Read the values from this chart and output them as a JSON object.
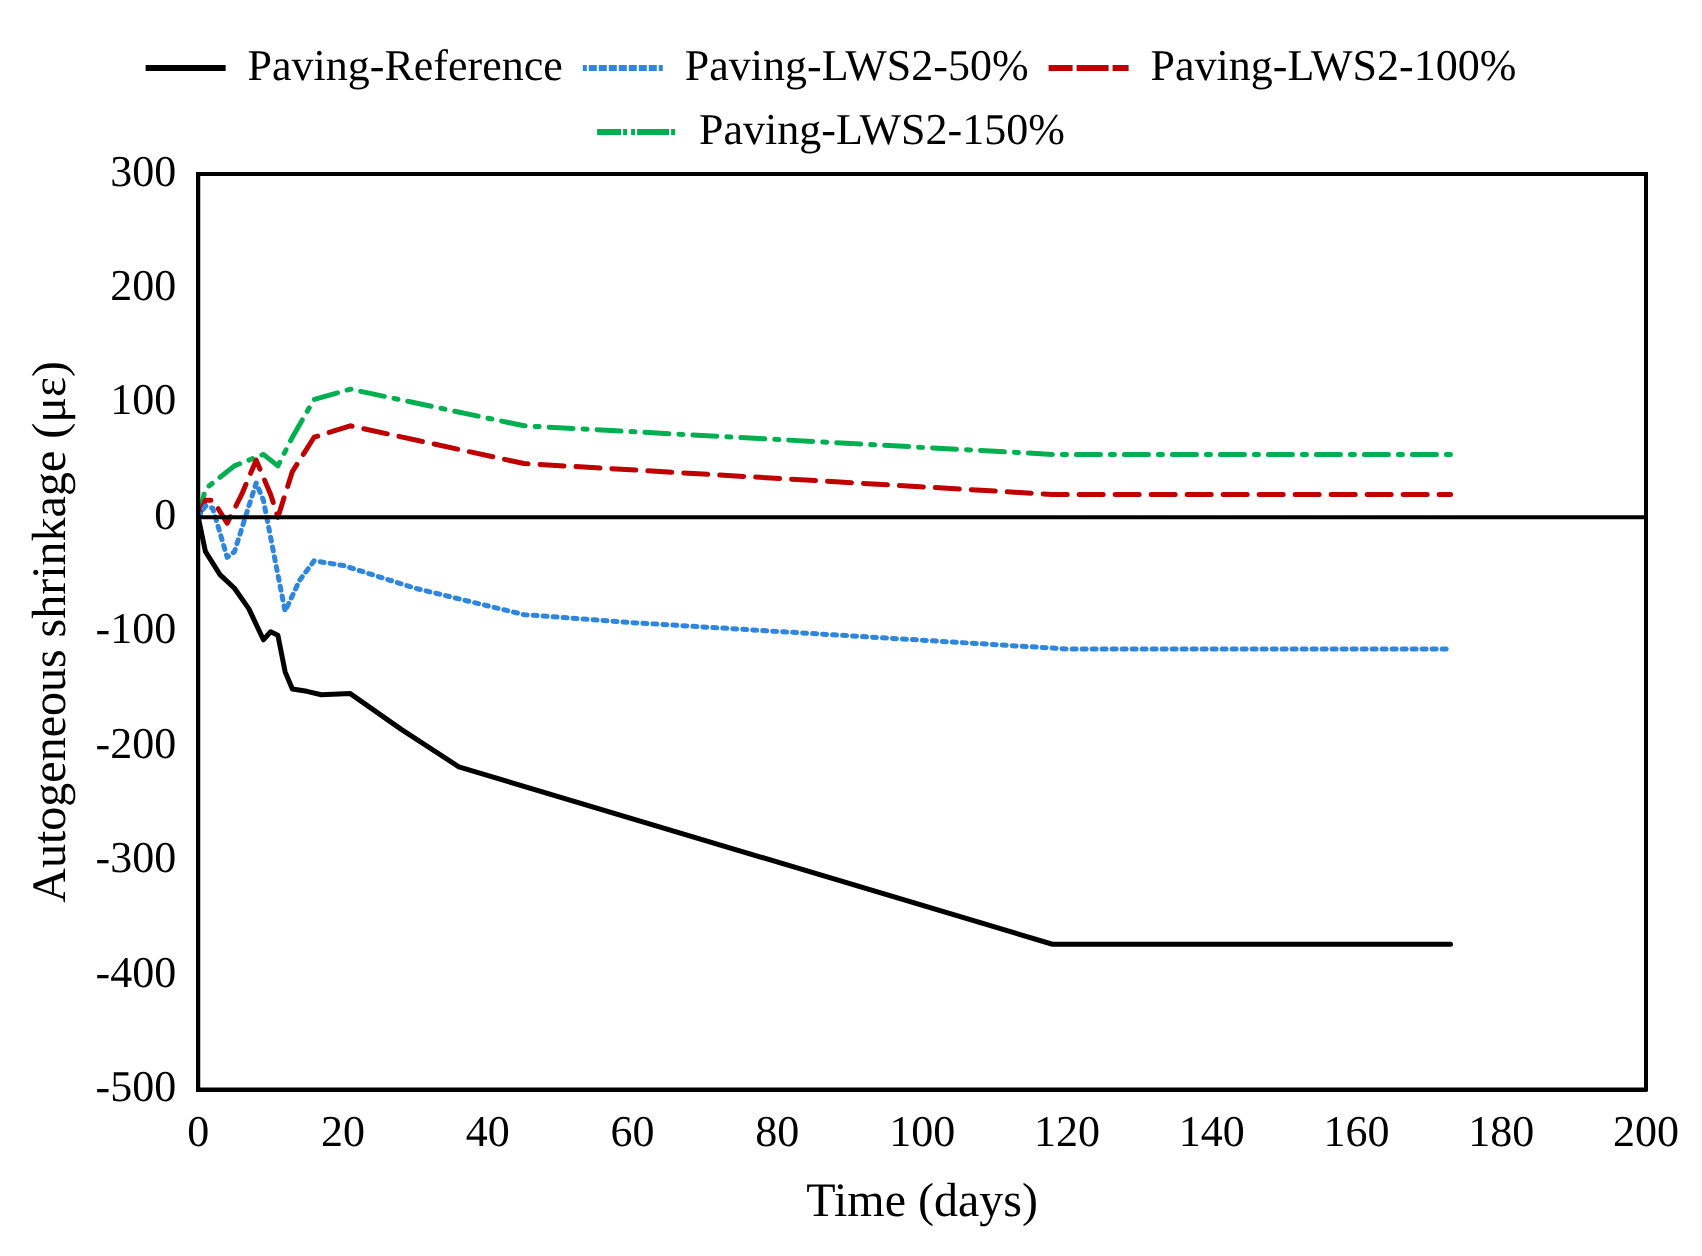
{
  "chart_data": {
    "type": "line",
    "xlabel": "Time (days)",
    "ylabel": "Autogeneous shrinkage (με)",
    "xlim": [
      0,
      200
    ],
    "xticks": [
      0,
      20,
      40,
      60,
      80,
      100,
      120,
      140,
      160,
      180,
      200
    ],
    "ylim": [
      -500,
      300
    ],
    "yticks": [
      -500,
      -400,
      -300,
      -200,
      -100,
      0,
      100,
      200,
      300
    ],
    "grid": false,
    "legend": "top",
    "marker": "none",
    "ref_lines": [
      {
        "axis": "y",
        "value": 0,
        "color": "#000000"
      }
    ],
    "series": [
      {
        "name": "Paving-Reference",
        "color": "#000000",
        "line_style": "solid",
        "x": [
          0,
          1,
          3,
          5,
          7,
          9,
          10,
          11,
          12,
          13,
          15,
          17,
          21,
          28,
          36,
          118,
          173
        ],
        "values": [
          0,
          -30,
          -50,
          -62,
          -80,
          -107,
          -100,
          -103,
          -135,
          -150,
          -152,
          -155,
          -154,
          -185,
          -218,
          -373,
          -373
        ]
      },
      {
        "name": "Paving-LWS2-50%",
        "color": "#2e86de",
        "line_style": "dotted",
        "x": [
          0,
          1,
          2,
          4,
          5,
          7,
          8,
          9,
          11,
          12,
          14,
          16,
          20,
          30,
          45,
          60,
          120,
          173
        ],
        "values": [
          0,
          10,
          8,
          -35,
          -30,
          10,
          30,
          15,
          -50,
          -82,
          -55,
          -38,
          -42,
          -62,
          -85,
          -92,
          -115,
          -115
        ]
      },
      {
        "name": "Paving-LWS2-100%",
        "color": "#c00000",
        "line_style": "dashed",
        "x": [
          0,
          1,
          2,
          4,
          6,
          8,
          10,
          11,
          13,
          16,
          21,
          45,
          118,
          173
        ],
        "values": [
          0,
          15,
          15,
          -5,
          20,
          50,
          20,
          0,
          40,
          70,
          80,
          47,
          20,
          20
        ]
      },
      {
        "name": "Paving-LWS2-150%",
        "color": "#00b050",
        "line_style": "dashdot",
        "x": [
          0,
          1,
          3,
          5,
          7,
          9,
          10,
          11,
          13,
          16,
          21,
          45,
          118,
          173
        ],
        "values": [
          0,
          25,
          35,
          45,
          50,
          55,
          50,
          45,
          70,
          103,
          112,
          80,
          55,
          55
        ]
      }
    ]
  }
}
